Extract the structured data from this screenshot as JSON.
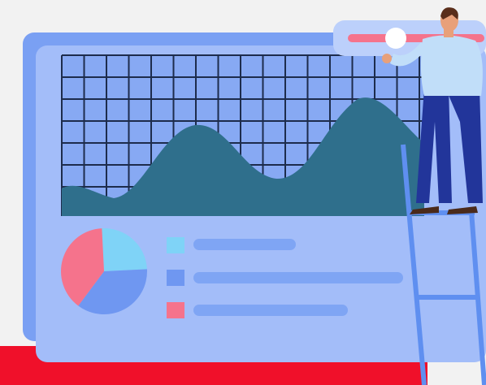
{
  "chart_data": {
    "type": "pie",
    "values": [
      25,
      36,
      39
    ],
    "colors": [
      "#7fd3f7",
      "#6f97f1",
      "#f5738c"
    ]
  }
}
